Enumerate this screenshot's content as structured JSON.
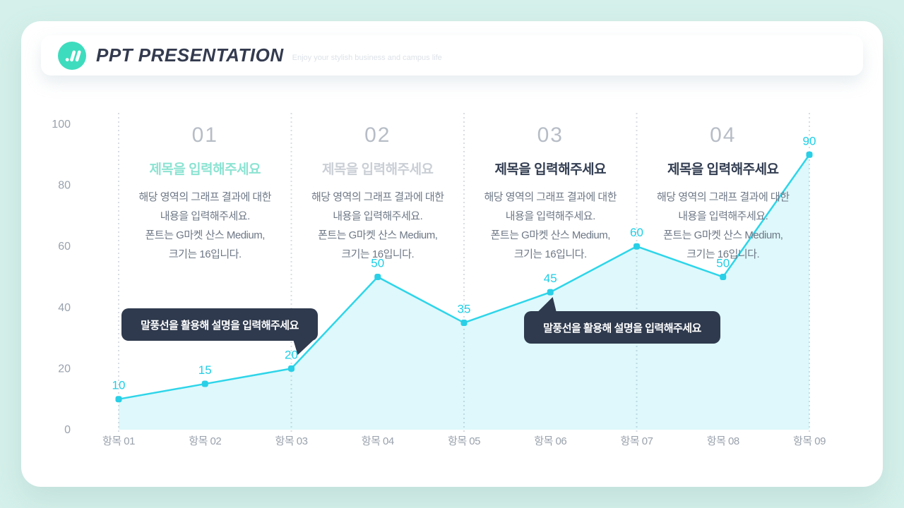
{
  "header": {
    "title": "PPT PRESENTATION",
    "subtitle": "Enjoy your stylish business and campus life",
    "logo_color": "#3edcbe"
  },
  "sections": [
    {
      "number": "01",
      "title": "제목을 입력해주세요",
      "title_color": "#8ce3d2",
      "desc_lines": [
        "해당 영역의 그래프 결과에 대한",
        "내용을 입력해주세요.",
        "폰트는 G마켓 산스 Medium,",
        "크기는 16입니다."
      ]
    },
    {
      "number": "02",
      "title": "제목을 입력해주세요",
      "title_color": "#cacfd6",
      "desc_lines": [
        "해당 영역의 그래프 결과에 대한",
        "내용을 입력해주세요.",
        "폰트는 G마켓 산스 Medium,",
        "크기는 16입니다."
      ]
    },
    {
      "number": "03",
      "title": "제목을 입력해주세요",
      "title_color": "#333e52",
      "desc_lines": [
        "해당 영역의 그래프 결과에 대한",
        "내용을 입력해주세요.",
        "폰트는 G마켓 산스 Medium,",
        "크기는 16입니다."
      ]
    },
    {
      "number": "04",
      "title": "제목을 입력해주세요",
      "title_color": "#333e52",
      "desc_lines": [
        "해당 영역의 그래프 결과에 대한",
        "내용을 입력해주세요.",
        "폰트는 G마켓 산스 Medium,",
        "크기는 16입니다."
      ]
    }
  ],
  "callouts": [
    {
      "text": "말풍선을 활용해 설명을 입력해주세요"
    },
    {
      "text": "말풍선을 활용해 설명을 입력해주세요"
    }
  ],
  "chart_data": {
    "type": "area",
    "title": "",
    "categories": [
      "항목 01",
      "항목 02",
      "항목 03",
      "항목 04",
      "항목 05",
      "항목 06",
      "항목 07",
      "항목 08",
      "항목 09"
    ],
    "values": [
      10,
      15,
      20,
      50,
      35,
      45,
      60,
      50,
      90
    ],
    "yticks": [
      0,
      20,
      40,
      60,
      80,
      100
    ],
    "ylim": [
      0,
      100
    ],
    "grid": "vertical-dashed-at-odd-categories",
    "gridline_category_indices": [
      0,
      2,
      4,
      6,
      8
    ],
    "xlabel": "",
    "ylabel": "",
    "legend": "none",
    "line_color": "#2ed5e9",
    "marker_color": "#29cfe6",
    "area_fill_color": "rgba(47,213,233,0.16)",
    "value_label_color": "#1ecfe7",
    "axis_text_color": "#9aa2ad",
    "gridline_color": "#d8dce2"
  }
}
